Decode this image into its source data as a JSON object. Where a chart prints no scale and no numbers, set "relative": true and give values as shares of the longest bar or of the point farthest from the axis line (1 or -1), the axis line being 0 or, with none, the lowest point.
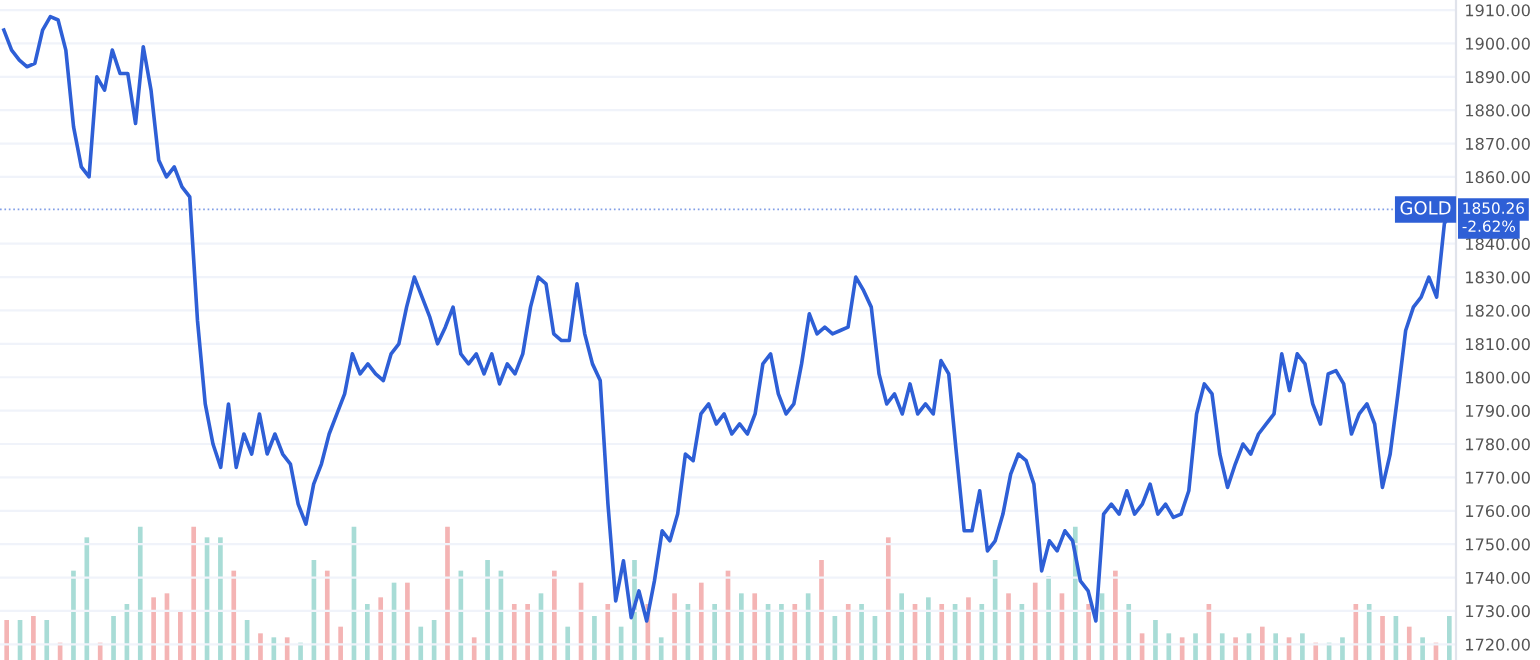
{
  "chart_data": [
    {
      "type": "line",
      "categories": [
        null,
        null,
        null,
        null,
        null,
        null,
        null,
        null,
        null,
        null,
        null,
        null,
        null,
        null,
        null,
        null,
        null,
        null,
        null,
        null,
        null,
        null,
        null,
        null,
        null,
        null,
        null,
        null,
        null,
        null,
        null,
        null,
        null,
        null,
        null,
        null,
        null,
        null,
        null,
        null,
        null,
        null,
        null,
        null,
        null,
        null,
        null,
        null,
        null,
        null,
        null,
        null,
        null,
        null,
        null,
        null,
        null,
        null,
        null,
        null,
        null,
        null,
        null,
        null,
        null,
        null,
        null,
        null,
        null,
        null,
        null,
        null,
        null,
        null,
        null,
        null,
        null,
        null,
        null,
        null,
        null,
        null,
        null,
        null,
        null,
        null,
        null,
        null,
        null,
        null,
        null,
        null,
        null,
        null,
        null,
        null,
        null,
        null,
        null,
        null,
        null,
        null,
        null,
        null,
        null,
        null,
        null,
        null,
        null,
        null,
        null,
        null,
        null,
        null,
        null,
        null,
        null,
        null,
        null,
        null,
        null,
        null,
        null,
        null,
        null,
        null,
        null,
        null,
        null,
        null,
        null,
        null,
        null,
        null,
        null,
        null,
        null,
        null,
        null,
        null,
        null,
        null,
        null,
        null,
        null,
        null,
        null,
        null,
        null,
        null,
        null,
        null,
        null,
        null,
        null,
        null,
        null,
        null,
        null,
        null,
        null,
        null,
        null,
        null,
        null,
        null,
        null,
        null,
        null,
        null,
        null,
        null,
        null,
        null,
        null,
        null,
        null,
        null,
        null,
        null,
        null,
        null,
        null,
        null,
        null,
        null,
        null,
        null
      ],
      "series": [
        {
          "color": "#2e5fd6",
          "values": [
            1904,
            1898,
            1895,
            1893,
            1894,
            1904,
            1908,
            1907,
            1898,
            1875,
            1863,
            1860,
            1890,
            1886,
            1898,
            1891,
            1891,
            1876,
            1899,
            1886,
            1865,
            1860,
            1863,
            1857,
            1854,
            1817,
            1792,
            1780,
            1773,
            1792,
            1773,
            1783,
            1777,
            1789,
            1777,
            1783,
            1777,
            1774,
            1762,
            1756,
            1768,
            1774,
            1783,
            1789,
            1795,
            1807,
            1801,
            1804,
            1801,
            1799,
            1807,
            1810,
            1821,
            1830,
            1824,
            1818,
            1810,
            1815,
            1821,
            1807,
            1804,
            1807,
            1801,
            1807,
            1798,
            1804,
            1801,
            1807,
            1821,
            1830,
            1828,
            1813,
            1811,
            1811,
            1828,
            1813,
            1804,
            1799,
            1762,
            1733,
            1745,
            1728,
            1736,
            1727,
            1739,
            1754,
            1751,
            1759,
            1777,
            1775,
            1789,
            1792,
            1786,
            1789,
            1783,
            1786,
            1783,
            1789,
            1804,
            1807,
            1795,
            1789,
            1792,
            1804,
            1819,
            1813,
            1815,
            1813,
            1814,
            1815,
            1830,
            1826,
            1821,
            1801,
            1792,
            1795,
            1789,
            1798,
            1789,
            1792,
            1789,
            1805,
            1801,
            1777,
            1754,
            1754,
            1766,
            1748,
            1751,
            1759,
            1771,
            1777,
            1775,
            1768,
            1742,
            1751,
            1748,
            1754,
            1751,
            1739,
            1736,
            1727,
            1759,
            1762,
            1759,
            1766,
            1759,
            1762,
            1768,
            1759,
            1762,
            1758,
            1759,
            1766,
            1789,
            1798,
            1795,
            1777,
            1767,
            1774,
            1780,
            1777,
            1783,
            1786,
            1789,
            1807,
            1796,
            1807,
            1804,
            1792,
            1786,
            1801,
            1802,
            1798,
            1783,
            1789,
            1792,
            1786,
            1767,
            1777,
            1795,
            1814,
            1821,
            1824,
            1830,
            1824,
            1846,
            1850.26
          ]
        }
      ],
      "ylim": [
        1715.3,
        1913
      ],
      "yticks": [
        {
          "value": 1720,
          "label": "1720.00"
        },
        {
          "value": 1730,
          "label": "1730.00"
        },
        {
          "value": 1740,
          "label": "1740.00"
        },
        {
          "value": 1750,
          "label": "1750.00"
        },
        {
          "value": 1760,
          "label": "1760.00"
        },
        {
          "value": 1770,
          "label": "1770.00"
        },
        {
          "value": 1780,
          "label": "1780.00"
        },
        {
          "value": 1790,
          "label": "1790.00"
        },
        {
          "value": 1800,
          "label": "1800.00"
        },
        {
          "value": 1810,
          "label": "1810.00"
        },
        {
          "value": 1820,
          "label": "1820.00"
        },
        {
          "value": 1830,
          "label": "1830.00"
        },
        {
          "value": 1840,
          "label": "1840.00"
        },
        {
          "value": 1860,
          "label": "1860.00"
        },
        {
          "value": 1870,
          "label": "1870.00"
        },
        {
          "value": 1880,
          "label": "1880.00"
        },
        {
          "value": 1890,
          "label": "1890.00"
        },
        {
          "value": 1900,
          "label": "1900.00"
        },
        {
          "value": 1910,
          "label": "1910.00"
        }
      ],
      "tick_labels": "y",
      "grid": "y",
      "ref_lines": [
        {
          "axis": "y",
          "value": 1850.26,
          "label": "GOLD",
          "color": "#2e5fd6",
          "line_style": "dotted"
        }
      ],
      "annotations": [
        {
          "text": "1850.26",
          "y": 1850.26
        },
        "-2.62%"
      ]
    },
    {
      "type": "bar",
      "relative": true,
      "categories": [
        null,
        null,
        null,
        null,
        null,
        null,
        null,
        null,
        null,
        null,
        null,
        null,
        null,
        null,
        null,
        null,
        null,
        null,
        null,
        null,
        null,
        null,
        null,
        null,
        null,
        null,
        null,
        null,
        null,
        null,
        null,
        null,
        null,
        null,
        null,
        null,
        null,
        null,
        null,
        null,
        null,
        null,
        null,
        null,
        null,
        null,
        null,
        null,
        null,
        null,
        null,
        null,
        null,
        null,
        null,
        null,
        null,
        null,
        null,
        null,
        null,
        null,
        null,
        null,
        null,
        null,
        null,
        null,
        null,
        null,
        null,
        null,
        null,
        null,
        null,
        null,
        null,
        null,
        null,
        null,
        null,
        null,
        null,
        null,
        null,
        null,
        null,
        null,
        null,
        null,
        null,
        null,
        null,
        null,
        null,
        null,
        null,
        null,
        null,
        null,
        null,
        null,
        null,
        null,
        null,
        null,
        null,
        null,
        null
      ],
      "values": [
        0.3,
        0.3,
        0.33,
        0.3,
        0.13,
        0.67,
        0.92,
        0.13,
        0.33,
        0.42,
        1,
        0.47,
        0.5,
        0.37,
        1,
        0.92,
        0.92,
        0.67,
        0.3,
        0.2,
        0.17,
        0.17,
        0.13,
        0.75,
        0.67,
        0.25,
        1,
        0.42,
        0.47,
        0.58,
        0.58,
        0.25,
        0.3,
        1,
        0.67,
        0.17,
        0.75,
        0.67,
        0.42,
        0.42,
        0.5,
        0.67,
        0.25,
        0.58,
        0.33,
        0.42,
        0.25,
        0.75,
        0.42,
        0.17,
        0.5,
        0.42,
        0.58,
        0.42,
        0.67,
        0.5,
        0.5,
        0.42,
        0.42,
        0.42,
        0.5,
        0.75,
        0.33,
        0.42,
        0.42,
        0.33,
        0.92,
        0.5,
        0.42,
        0.47,
        0.42,
        0.42,
        0.47,
        0.42,
        0.75,
        0.5,
        0.42,
        0.58,
        0.63,
        0.5,
        1,
        0.42,
        0.5,
        0.67,
        0.42,
        0.2,
        0.3,
        0.2,
        0.17,
        0.2,
        0.42,
        0.2,
        0.17,
        0.2,
        0.25,
        0.2,
        0.17,
        0.2,
        0.13,
        0.13,
        0.17,
        0.42,
        0.42,
        0.33,
        0.33,
        0.25,
        0.17,
        0.13,
        0.33
      ],
      "colors": [
        "#f4b4b4",
        "#a8dcd6",
        "#f4b4b4",
        "#a8dcd6",
        "#f4b4b4",
        "#a8dcd6",
        "#a8dcd6",
        "#f4b4b4",
        "#a8dcd6",
        "#a8dcd6",
        "#a8dcd6",
        "#f4b4b4",
        "#f4b4b4",
        "#f4b4b4",
        "#f4b4b4",
        "#a8dcd6",
        "#a8dcd6",
        "#f4b4b4",
        "#a8dcd6",
        "#f4b4b4",
        "#a8dcd6",
        "#f4b4b4",
        "#a8dcd6",
        "#a8dcd6",
        "#f4b4b4",
        "#f4b4b4",
        "#a8dcd6",
        "#a8dcd6",
        "#f4b4b4",
        "#a8dcd6",
        "#f4b4b4",
        "#a8dcd6",
        "#a8dcd6",
        "#f4b4b4",
        "#a8dcd6",
        "#f4b4b4",
        "#a8dcd6",
        "#a8dcd6",
        "#f4b4b4",
        "#f4b4b4",
        "#a8dcd6",
        "#f4b4b4",
        "#a8dcd6",
        "#f4b4b4",
        "#a8dcd6",
        "#f4b4b4",
        "#a8dcd6",
        "#a8dcd6",
        "#f4b4b4",
        "#a8dcd6",
        "#f4b4b4",
        "#a8dcd6",
        "#f4b4b4",
        "#a8dcd6",
        "#f4b4b4",
        "#a8dcd6",
        "#f4b4b4",
        "#a8dcd6",
        "#a8dcd6",
        "#f4b4b4",
        "#a8dcd6",
        "#f4b4b4",
        "#a8dcd6",
        "#f4b4b4",
        "#a8dcd6",
        "#a8dcd6",
        "#f4b4b4",
        "#a8dcd6",
        "#f4b4b4",
        "#a8dcd6",
        "#f4b4b4",
        "#a8dcd6",
        "#f4b4b4",
        "#a8dcd6",
        "#a8dcd6",
        "#f4b4b4",
        "#a8dcd6",
        "#f4b4b4",
        "#a8dcd6",
        "#f4b4b4",
        "#a8dcd6",
        "#f4b4b4",
        "#a8dcd6",
        "#f4b4b4",
        "#a8dcd6",
        "#f4b4b4",
        "#a8dcd6",
        "#a8dcd6",
        "#f4b4b4",
        "#a8dcd6",
        "#f4b4b4",
        "#a8dcd6",
        "#f4b4b4",
        "#a8dcd6",
        "#f4b4b4",
        "#a8dcd6",
        "#f4b4b4",
        "#a8dcd6",
        "#f4b4b4",
        "#a8dcd6",
        "#a8dcd6",
        "#f4b4b4",
        "#a8dcd6",
        "#f4b4b4",
        "#a8dcd6",
        "#f4b4b4",
        "#a8dcd6",
        "#f4b4b4",
        "#a8dcd6"
      ]
    }
  ]
}
